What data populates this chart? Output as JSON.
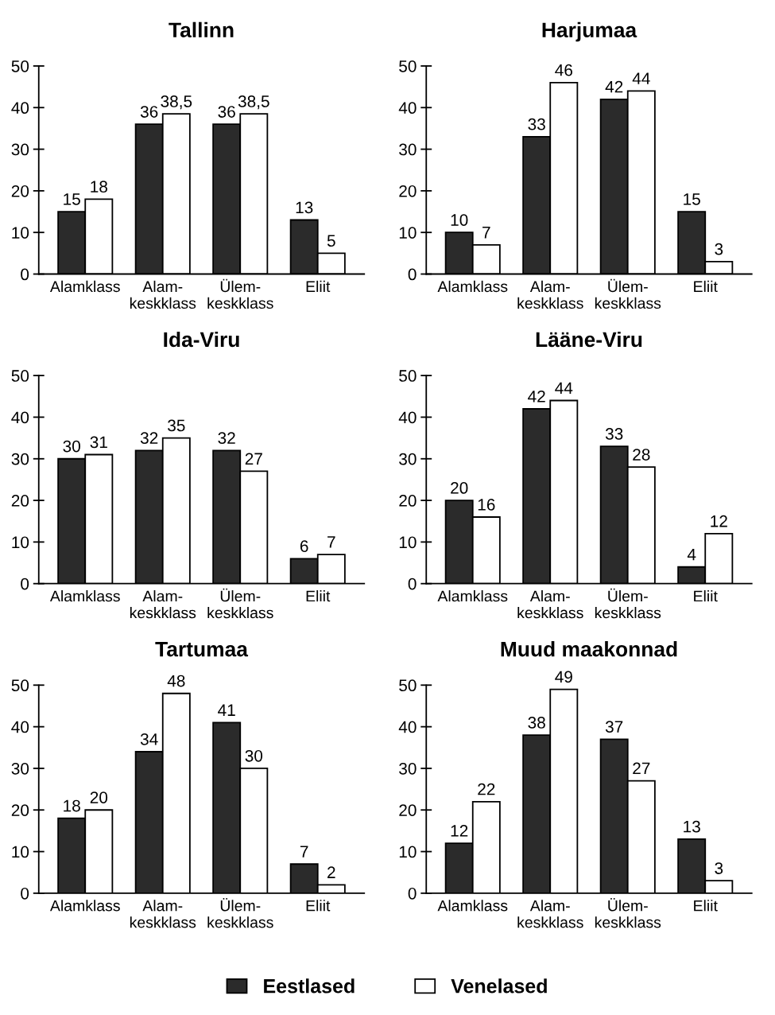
{
  "chart_data": [
    {
      "type": "bar",
      "title": "Tallinn",
      "categories": [
        "Alamklass",
        "Alam-\nkeskklass",
        "Ülem-\nkeskklass",
        "Eliit"
      ],
      "ylim": [
        0,
        50
      ],
      "yticks": [
        0,
        10,
        20,
        30,
        40,
        50
      ],
      "grid": false,
      "legend": false,
      "series": [
        {
          "color": "#2b2b2b",
          "values": [
            15,
            36,
            36,
            13
          ],
          "value_labels": [
            "15",
            "36",
            "36",
            "13"
          ]
        },
        {
          "color": "#ffffff",
          "values": [
            18,
            38.5,
            38.5,
            5
          ],
          "value_labels": [
            "18",
            "38,5",
            "38,5",
            "5"
          ]
        }
      ]
    },
    {
      "type": "bar",
      "title": "Harjumaa",
      "categories": [
        "Alamklass",
        "Alam-\nkeskklass",
        "Ülem-\nkeskklass",
        "Eliit"
      ],
      "ylim": [
        0,
        50
      ],
      "yticks": [
        0,
        10,
        20,
        30,
        40,
        50
      ],
      "grid": false,
      "legend": false,
      "series": [
        {
          "color": "#2b2b2b",
          "values": [
            10,
            33,
            42,
            15
          ],
          "value_labels": [
            "10",
            "33",
            "42",
            "15"
          ]
        },
        {
          "color": "#ffffff",
          "values": [
            7,
            46,
            44,
            3
          ],
          "value_labels": [
            "7",
            "46",
            "44",
            "3"
          ]
        }
      ]
    },
    {
      "type": "bar",
      "title": "Ida-Viru",
      "categories": [
        "Alamklass",
        "Alam-\nkeskklass",
        "Ülem-\nkeskklass",
        "Eliit"
      ],
      "ylim": [
        0,
        50
      ],
      "yticks": [
        0,
        10,
        20,
        30,
        40,
        50
      ],
      "grid": false,
      "legend": false,
      "series": [
        {
          "color": "#2b2b2b",
          "values": [
            30,
            32,
            32,
            6
          ],
          "value_labels": [
            "30",
            "32",
            "32",
            "6"
          ]
        },
        {
          "color": "#ffffff",
          "values": [
            31,
            35,
            27,
            7
          ],
          "value_labels": [
            "31",
            "35",
            "27",
            "7"
          ]
        }
      ]
    },
    {
      "type": "bar",
      "title": "Lääne-Viru",
      "categories": [
        "Alamklass",
        "Alam-\nkeskklass",
        "Ülem-\nkeskklass",
        "Eliit"
      ],
      "ylim": [
        0,
        50
      ],
      "yticks": [
        0,
        10,
        20,
        30,
        40,
        50
      ],
      "grid": false,
      "legend": false,
      "series": [
        {
          "color": "#2b2b2b",
          "values": [
            20,
            42,
            33,
            4
          ],
          "value_labels": [
            "20",
            "42",
            "33",
            "4"
          ]
        },
        {
          "color": "#ffffff",
          "values": [
            16,
            44,
            28,
            12
          ],
          "value_labels": [
            "16",
            "44",
            "28",
            "12"
          ]
        }
      ]
    },
    {
      "type": "bar",
      "title": "Tartumaa",
      "categories": [
        "Alamklass",
        "Alam-\nkeskklass",
        "Ülem-\nkeskklass",
        "Eliit"
      ],
      "ylim": [
        0,
        50
      ],
      "yticks": [
        0,
        10,
        20,
        30,
        40,
        50
      ],
      "grid": false,
      "legend": false,
      "series": [
        {
          "color": "#2b2b2b",
          "values": [
            18,
            34,
            41,
            7
          ],
          "value_labels": [
            "18",
            "34",
            "41",
            "7"
          ]
        },
        {
          "color": "#ffffff",
          "values": [
            20,
            48,
            30,
            2
          ],
          "value_labels": [
            "20",
            "48",
            "30",
            "2"
          ]
        }
      ]
    },
    {
      "type": "bar",
      "title": "Muud maakonnad",
      "categories": [
        "Alamklass",
        "Alam-\nkeskklass",
        "Ülem-\nkeskklass",
        "Eliit"
      ],
      "ylim": [
        0,
        50
      ],
      "yticks": [
        0,
        10,
        20,
        30,
        40,
        50
      ],
      "grid": false,
      "legend": "bottom",
      "series": [
        {
          "name": "Eestlased",
          "color": "#2b2b2b",
          "values": [
            12,
            38,
            37,
            13
          ],
          "value_labels": [
            "12",
            "38",
            "37",
            "13"
          ]
        },
        {
          "name": "Venelased",
          "color": "#ffffff",
          "values": [
            22,
            49,
            27,
            3
          ],
          "value_labels": [
            "22",
            "49",
            "27",
            "3"
          ]
        }
      ]
    }
  ]
}
